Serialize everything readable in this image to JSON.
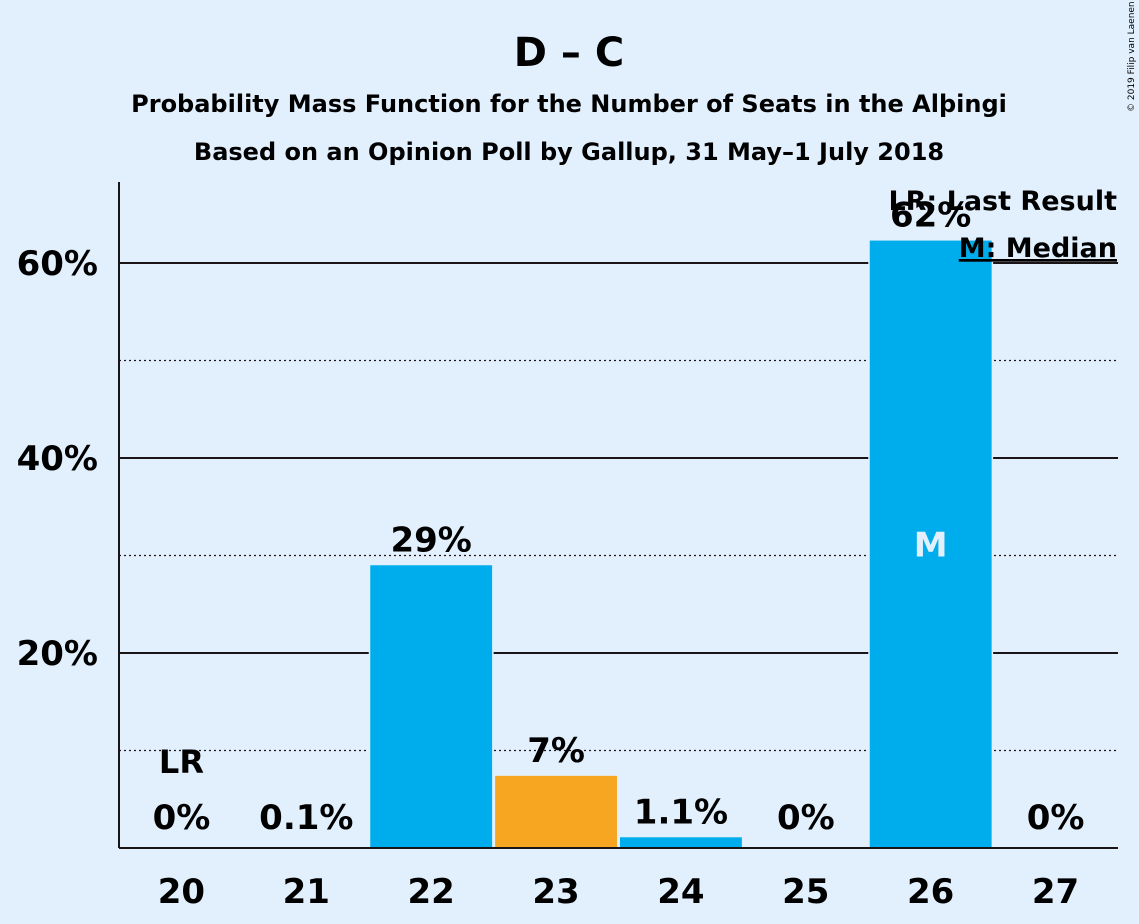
{
  "copyright": "© 2019 Filip van Laenen",
  "chart_data": {
    "type": "bar",
    "title": "D – C",
    "subtitle1": "Probability Mass Function for the Number of Seats in the Alþingi",
    "subtitle2": "Based on an Opinion Poll by Gallup, 31 May–1 July 2018",
    "categories": [
      "20",
      "21",
      "22",
      "23",
      "24",
      "25",
      "26",
      "27"
    ],
    "values": [
      0,
      0.1,
      29,
      7.4,
      1.1,
      0,
      62.3,
      0
    ],
    "value_labels": [
      "0%",
      "0.1%",
      "29%",
      "7%",
      "1.1%",
      "0%",
      "62%",
      "0%"
    ],
    "bar_colors": [
      "#00adec",
      "#00adec",
      "#00adec",
      "#f6a620",
      "#00adec",
      "#00adec",
      "#00adec",
      "#00adec"
    ],
    "last_result_index": 0,
    "median_index": 6,
    "last_result_marker": "LR",
    "median_marker": "M",
    "ylim": [
      0,
      68
    ],
    "yticks": [
      20,
      40,
      60
    ],
    "ytick_labels": [
      "20%",
      "40%",
      "60%"
    ],
    "minor_gridlines": [
      10,
      30,
      50
    ],
    "legend": {
      "lr": "LR: Last Result",
      "median": "M: Median",
      "placement": "top-right"
    },
    "colors": {
      "background": "#e2f0fe",
      "bar": "#00adec",
      "highlight": "#f6a620",
      "text": "#1a1416"
    }
  }
}
